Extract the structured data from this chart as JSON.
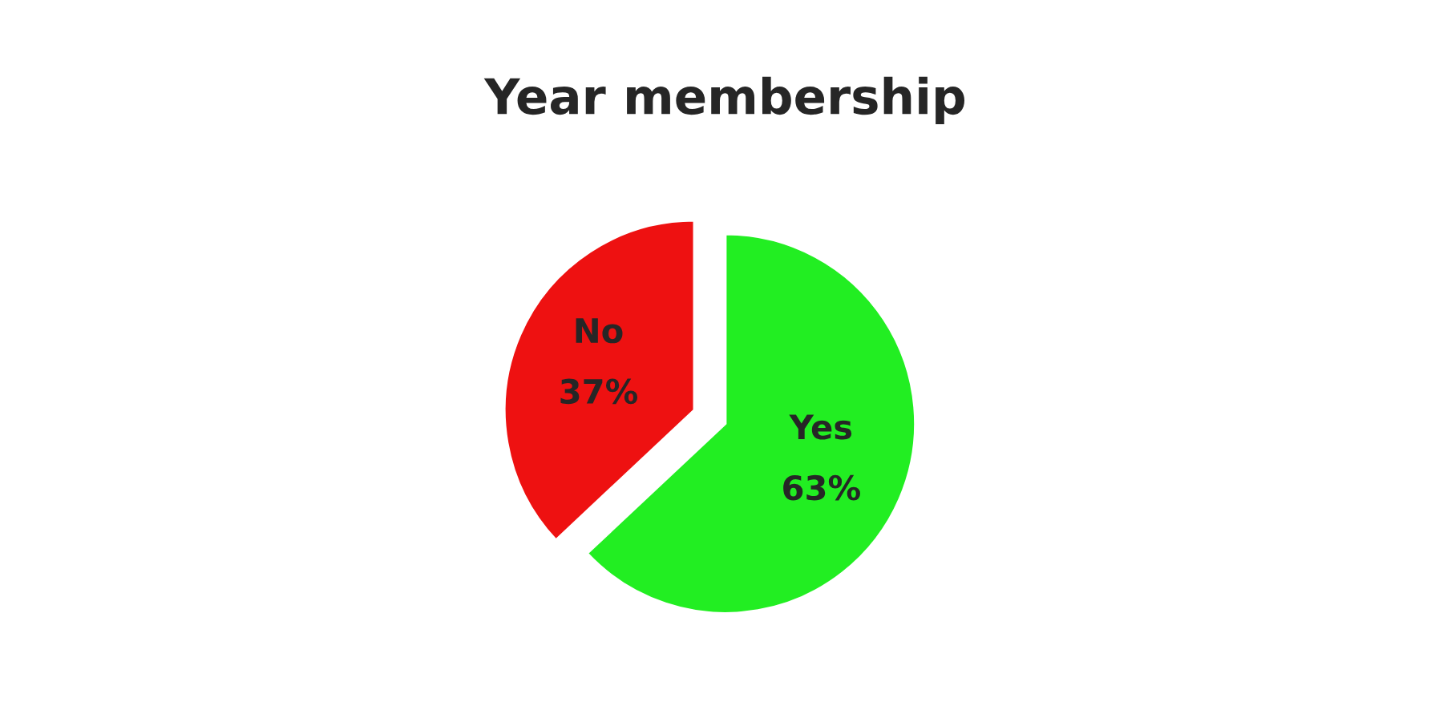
{
  "chart_data": {
    "type": "pie",
    "title": "Year membership",
    "categories": [
      "Yes",
      "No"
    ],
    "values": [
      63,
      37
    ],
    "colors": [
      "#22ee22",
      "#ee1111"
    ],
    "value_labels": [
      "63%",
      "37%"
    ]
  }
}
